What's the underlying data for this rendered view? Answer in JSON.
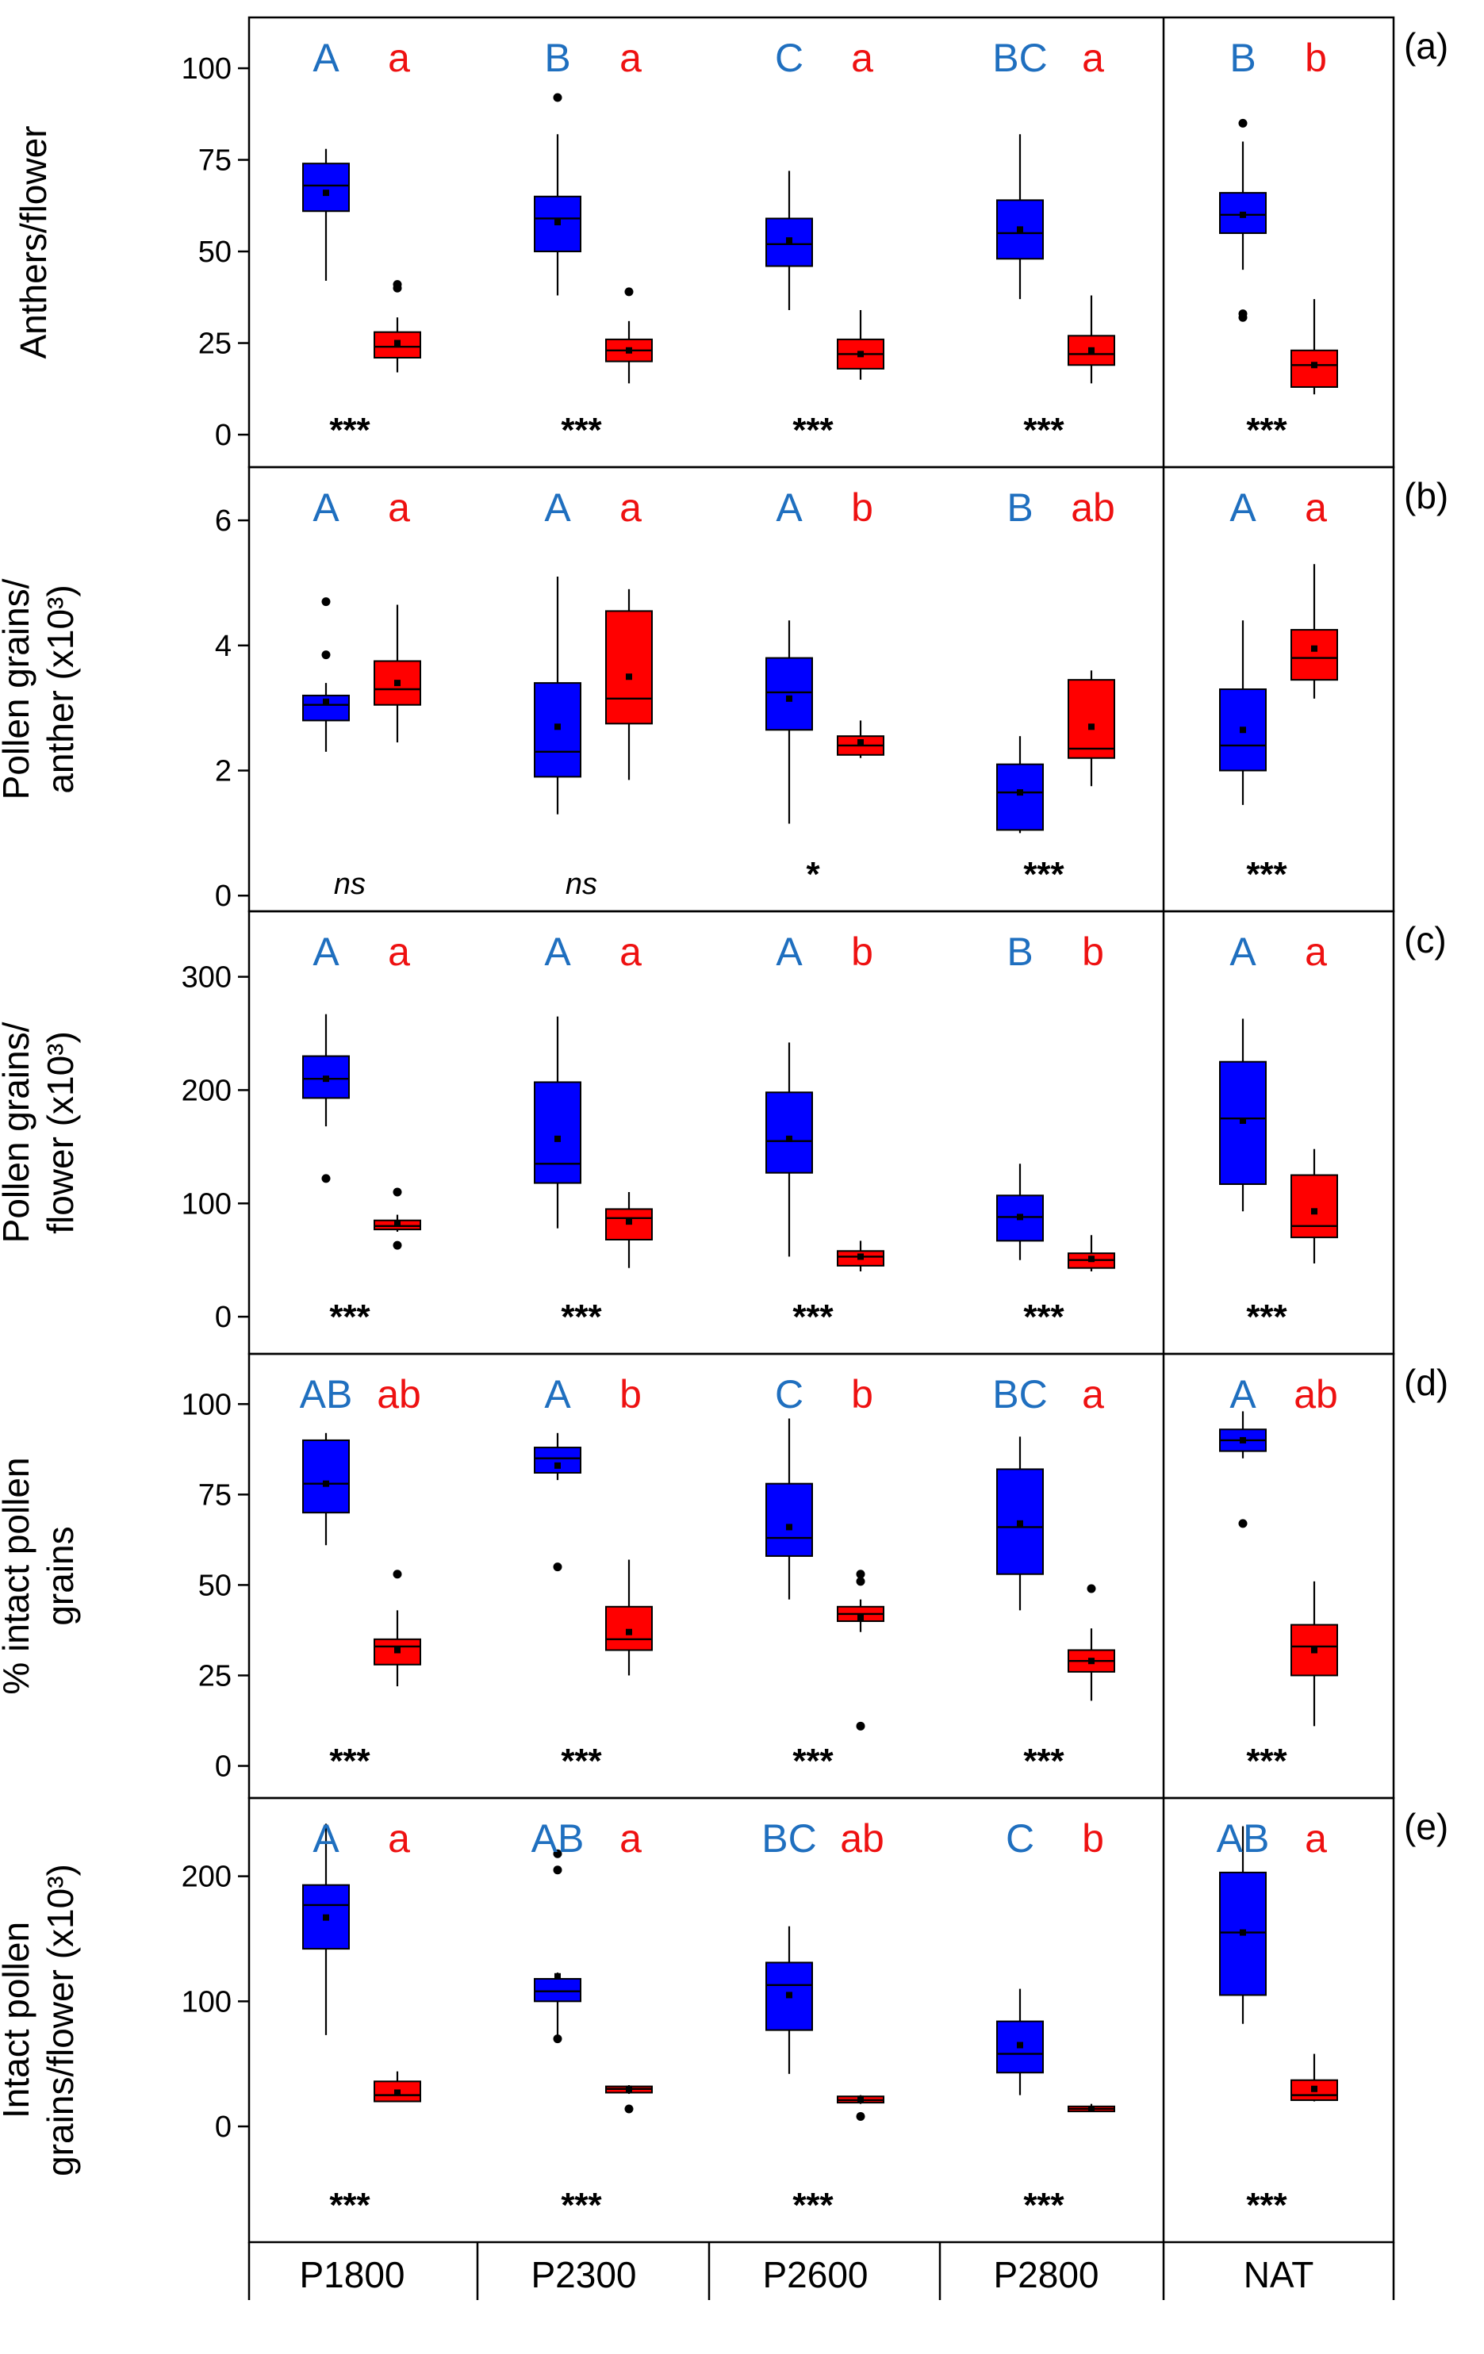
{
  "figure": {
    "groups": [
      "P1800",
      "P2300",
      "P2600",
      "P2800",
      "NAT"
    ],
    "colors": {
      "blue": "#0000ff",
      "red": "#ff0000",
      "blue_label": "#1f6fbf",
      "red_label": "#ee1111",
      "axis": "#000000"
    }
  },
  "chart_data": [
    {
      "type": "box",
      "panel": "(a)",
      "ylabel": [
        "Anthers/flower"
      ],
      "ylim": [
        -8,
        113
      ],
      "yticks": [
        0,
        25,
        50,
        75,
        100
      ],
      "letters_blue": [
        "A",
        "B",
        "C",
        "BC",
        "B"
      ],
      "letters_red": [
        "a",
        "a",
        "a",
        "a",
        "b"
      ],
      "significance": [
        "***",
        "***",
        "***",
        "***",
        "***"
      ],
      "series": [
        {
          "name": "blue",
          "boxes": [
            {
              "whislo": 42,
              "q1": 61,
              "med": 68,
              "q3": 74,
              "whishi": 78,
              "mean": 66,
              "fliers": []
            },
            {
              "whislo": 38,
              "q1": 50,
              "med": 59,
              "q3": 65,
              "whishi": 82,
              "mean": 58,
              "fliers": [
                92
              ]
            },
            {
              "whislo": 34,
              "q1": 46,
              "med": 52,
              "q3": 59,
              "whishi": 72,
              "mean": 53,
              "fliers": []
            },
            {
              "whislo": 37,
              "q1": 48,
              "med": 55,
              "q3": 64,
              "whishi": 82,
              "mean": 56,
              "fliers": []
            },
            {
              "whislo": 45,
              "q1": 55,
              "med": 60,
              "q3": 66,
              "whishi": 80,
              "mean": 60,
              "fliers": [
                85,
                33,
                32
              ]
            }
          ]
        },
        {
          "name": "red",
          "boxes": [
            {
              "whislo": 17,
              "q1": 21,
              "med": 24,
              "q3": 28,
              "whishi": 32,
              "mean": 25,
              "fliers": [
                40,
                41
              ]
            },
            {
              "whislo": 14,
              "q1": 20,
              "med": 23,
              "q3": 26,
              "whishi": 31,
              "mean": 23,
              "fliers": [
                39
              ]
            },
            {
              "whislo": 15,
              "q1": 18,
              "med": 22,
              "q3": 26,
              "whishi": 34,
              "mean": 22,
              "fliers": []
            },
            {
              "whislo": 14,
              "q1": 19,
              "med": 22,
              "q3": 27,
              "whishi": 38,
              "mean": 23,
              "fliers": []
            },
            {
              "whislo": 11,
              "q1": 13,
              "med": 19,
              "q3": 23,
              "whishi": 37,
              "mean": 19,
              "fliers": []
            }
          ]
        }
      ]
    },
    {
      "type": "box",
      "panel": "(b)",
      "ylabel": [
        "Pollen grains/",
        "anther (x10³)"
      ],
      "ylim": [
        -0.2,
        6.8
      ],
      "yticks": [
        0,
        2,
        4,
        6
      ],
      "letters_blue": [
        "A",
        "A",
        "A",
        "B",
        "A"
      ],
      "letters_red": [
        "a",
        "a",
        "b",
        "ab",
        "a"
      ],
      "significance": [
        "ns",
        "ns",
        "*",
        "***",
        "***"
      ],
      "series": [
        {
          "name": "blue",
          "boxes": [
            {
              "whislo": 2.3,
              "q1": 2.8,
              "med": 3.05,
              "q3": 3.2,
              "whishi": 3.4,
              "mean": 3.1,
              "fliers": [
                4.7,
                3.85
              ]
            },
            {
              "whislo": 1.3,
              "q1": 1.9,
              "med": 2.3,
              "q3": 3.4,
              "whishi": 5.1,
              "mean": 2.7,
              "fliers": []
            },
            {
              "whislo": 1.15,
              "q1": 2.65,
              "med": 3.25,
              "q3": 3.8,
              "whishi": 4.4,
              "mean": 3.15,
              "fliers": []
            },
            {
              "whislo": 1.0,
              "q1": 1.05,
              "med": 1.65,
              "q3": 2.1,
              "whishi": 2.55,
              "mean": 1.65,
              "fliers": []
            },
            {
              "whislo": 1.45,
              "q1": 2.0,
              "med": 2.4,
              "q3": 3.3,
              "whishi": 4.4,
              "mean": 2.65,
              "fliers": []
            }
          ]
        },
        {
          "name": "red",
          "boxes": [
            {
              "whislo": 2.45,
              "q1": 3.05,
              "med": 3.3,
              "q3": 3.75,
              "whishi": 4.65,
              "mean": 3.4,
              "fliers": []
            },
            {
              "whislo": 1.85,
              "q1": 2.75,
              "med": 3.15,
              "q3": 4.55,
              "whishi": 4.9,
              "mean": 3.5,
              "fliers": []
            },
            {
              "whislo": 2.2,
              "q1": 2.25,
              "med": 2.4,
              "q3": 2.55,
              "whishi": 2.8,
              "mean": 2.45,
              "fliers": []
            },
            {
              "whislo": 1.75,
              "q1": 2.2,
              "med": 2.35,
              "q3": 3.45,
              "whishi": 3.6,
              "mean": 2.7,
              "fliers": []
            },
            {
              "whislo": 3.15,
              "q1": 3.45,
              "med": 3.8,
              "q3": 4.25,
              "whishi": 5.3,
              "mean": 3.95,
              "fliers": []
            }
          ]
        }
      ]
    },
    {
      "type": "box",
      "panel": "(c)",
      "ylabel": [
        "Pollen grains/",
        "flower (x10³)"
      ],
      "ylim": [
        -30,
        355
      ],
      "yticks": [
        0,
        100,
        200,
        300
      ],
      "letters_blue": [
        "A",
        "A",
        "A",
        "B",
        "A"
      ],
      "letters_red": [
        "a",
        "a",
        "b",
        "b",
        "a"
      ],
      "significance": [
        "***",
        "***",
        "***",
        "***",
        "***"
      ],
      "series": [
        {
          "name": "blue",
          "boxes": [
            {
              "whislo": 168,
              "q1": 193,
              "med": 210,
              "q3": 230,
              "whishi": 267,
              "mean": 210,
              "fliers": [
                122
              ]
            },
            {
              "whislo": 78,
              "q1": 118,
              "med": 135,
              "q3": 207,
              "whishi": 265,
              "mean": 157,
              "fliers": []
            },
            {
              "whislo": 53,
              "q1": 127,
              "med": 155,
              "q3": 198,
              "whishi": 242,
              "mean": 157,
              "fliers": []
            },
            {
              "whislo": 50,
              "q1": 67,
              "med": 88,
              "q3": 107,
              "whishi": 135,
              "mean": 88,
              "fliers": []
            },
            {
              "whislo": 93,
              "q1": 117,
              "med": 175,
              "q3": 225,
              "whishi": 263,
              "mean": 173,
              "fliers": []
            }
          ]
        },
        {
          "name": "red",
          "boxes": [
            {
              "whislo": 75,
              "q1": 77,
              "med": 80,
              "q3": 85,
              "whishi": 90,
              "mean": 82,
              "fliers": [
                110,
                63
              ]
            },
            {
              "whislo": 43,
              "q1": 68,
              "med": 87,
              "q3": 95,
              "whishi": 110,
              "mean": 84,
              "fliers": []
            },
            {
              "whislo": 40,
              "q1": 45,
              "med": 53,
              "q3": 58,
              "whishi": 67,
              "mean": 53,
              "fliers": []
            },
            {
              "whislo": 40,
              "q1": 43,
              "med": 50,
              "q3": 56,
              "whishi": 72,
              "mean": 51,
              "fliers": []
            },
            {
              "whislo": 47,
              "q1": 70,
              "med": 80,
              "q3": 125,
              "whishi": 148,
              "mean": 93,
              "fliers": []
            }
          ]
        }
      ]
    },
    {
      "type": "box",
      "panel": "(d)",
      "ylabel": [
        "% intact pollen",
        "grains"
      ],
      "ylim": [
        -8,
        113
      ],
      "yticks": [
        0,
        25,
        50,
        75,
        100
      ],
      "letters_blue": [
        "AB",
        "A",
        "C",
        "BC",
        "A"
      ],
      "letters_red": [
        "ab",
        "b",
        "b",
        "a",
        "ab"
      ],
      "significance": [
        "***",
        "***",
        "***",
        "***",
        "***"
      ],
      "series": [
        {
          "name": "blue",
          "boxes": [
            {
              "whislo": 61,
              "q1": 70,
              "med": 78,
              "q3": 90,
              "whishi": 92,
              "mean": 78,
              "fliers": []
            },
            {
              "whislo": 79,
              "q1": 81,
              "med": 85,
              "q3": 88,
              "whishi": 92,
              "mean": 83,
              "fliers": [
                55
              ]
            },
            {
              "whislo": 46,
              "q1": 58,
              "med": 63,
              "q3": 78,
              "whishi": 96,
              "mean": 66,
              "fliers": []
            },
            {
              "whislo": 43,
              "q1": 53,
              "med": 66,
              "q3": 82,
              "whishi": 91,
              "mean": 67,
              "fliers": []
            },
            {
              "whislo": 85,
              "q1": 87,
              "med": 90,
              "q3": 93,
              "whishi": 98,
              "mean": 90,
              "fliers": [
                67
              ]
            }
          ]
        },
        {
          "name": "red",
          "boxes": [
            {
              "whislo": 22,
              "q1": 28,
              "med": 33,
              "q3": 35,
              "whishi": 43,
              "mean": 32,
              "fliers": [
                53
              ]
            },
            {
              "whislo": 25,
              "q1": 32,
              "med": 35,
              "q3": 44,
              "whishi": 57,
              "mean": 37,
              "fliers": []
            },
            {
              "whislo": 37,
              "q1": 40,
              "med": 42,
              "q3": 44,
              "whishi": 46,
              "mean": 41,
              "fliers": [
                53,
                51,
                11
              ]
            },
            {
              "whislo": 18,
              "q1": 26,
              "med": 29,
              "q3": 32,
              "whishi": 38,
              "mean": 29,
              "fliers": [
                49
              ]
            },
            {
              "whislo": 11,
              "q1": 25,
              "med": 33,
              "q3": 39,
              "whishi": 51,
              "mean": 32,
              "fliers": []
            }
          ]
        }
      ]
    },
    {
      "type": "box",
      "panel": "(e)",
      "ylabel": [
        "Intact pollen",
        "grains/flower (x10³)"
      ],
      "ylim": [
        -90,
        260
      ],
      "yticks": [
        0,
        100,
        200
      ],
      "letters_blue": [
        "A",
        "AB",
        "BC",
        "C",
        "AB"
      ],
      "letters_red": [
        "a",
        "a",
        "ab",
        "b",
        "a"
      ],
      "significance": [
        "***",
        "***",
        "***",
        "***",
        "***"
      ],
      "series": [
        {
          "name": "blue",
          "boxes": [
            {
              "whislo": 73,
              "q1": 142,
              "med": 177,
              "q3": 193,
              "whishi": 242,
              "mean": 167,
              "fliers": []
            },
            {
              "whislo": 72,
              "q1": 100,
              "med": 108,
              "q3": 118,
              "whishi": 123,
              "mean": 120,
              "fliers": [
                218,
                205,
                70
              ]
            },
            {
              "whislo": 42,
              "q1": 77,
              "med": 113,
              "q3": 131,
              "whishi": 160,
              "mean": 105,
              "fliers": []
            },
            {
              "whislo": 25,
              "q1": 43,
              "med": 58,
              "q3": 84,
              "whishi": 110,
              "mean": 65,
              "fliers": []
            },
            {
              "whislo": 82,
              "q1": 105,
              "med": 155,
              "q3": 203,
              "whishi": 240,
              "mean": 155,
              "fliers": []
            }
          ]
        },
        {
          "name": "red",
          "boxes": [
            {
              "whislo": 20,
              "q1": 20,
              "med": 25,
              "q3": 36,
              "whishi": 44,
              "mean": 27,
              "fliers": []
            },
            {
              "whislo": 26,
              "q1": 27,
              "med": 30,
              "q3": 32,
              "whishi": 33,
              "mean": 30,
              "fliers": [
                14
              ]
            },
            {
              "whislo": 18,
              "q1": 19,
              "med": 21,
              "q3": 24,
              "whishi": 25,
              "mean": 22,
              "fliers": [
                8
              ]
            },
            {
              "whislo": 12,
              "q1": 12,
              "med": 14,
              "q3": 16,
              "whishi": 18,
              "mean": 14,
              "fliers": []
            },
            {
              "whislo": 20,
              "q1": 21,
              "med": 25,
              "q3": 37,
              "whishi": 58,
              "mean": 30,
              "fliers": []
            }
          ]
        }
      ]
    }
  ]
}
